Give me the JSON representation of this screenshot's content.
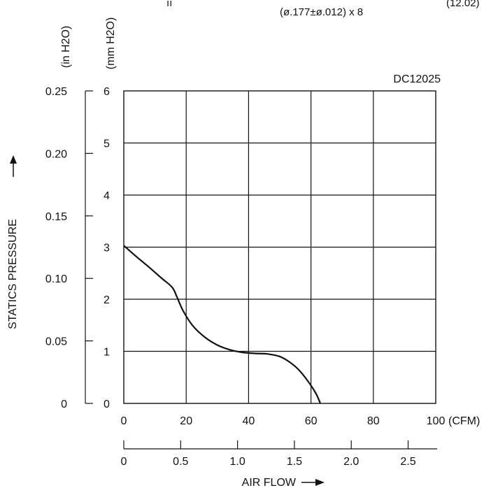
{
  "header_fragments": {
    "left_mark": "ıı",
    "hole_spec": "(ø.177±ø.012) x 8",
    "right_note": "(12.02)"
  },
  "chart_data": {
    "type": "line",
    "model": "DC12025",
    "xlabel": "AIR FLOW",
    "ylabel": "STATICS PRESSURE",
    "x_unit": "(CFM)",
    "y_units": {
      "primary": "(mm H2O)",
      "secondary": "(in H2O)"
    },
    "xlim": [
      0,
      100
    ],
    "ylim": [
      0,
      6
    ],
    "grid": true,
    "x_ticks": [
      "0",
      "20",
      "40",
      "60",
      "80",
      "100"
    ],
    "x_ticks_secondary": [
      "0",
      "0.5",
      "1.0",
      "1.5",
      "2.0",
      "2.5"
    ],
    "y_ticks": [
      "0",
      "1",
      "2",
      "3",
      "4",
      "5",
      "6"
    ],
    "y_ticks_secondary": [
      "0",
      "0.05",
      "0.10",
      "0.15",
      "0.20",
      "0.25"
    ],
    "series": [
      {
        "x": [
          0,
          4,
          8,
          12,
          15.5,
          17,
          19,
          22,
          26,
          30,
          34,
          38,
          42,
          46,
          50,
          53,
          56,
          59,
          61.5,
          63
        ],
        "y": [
          3.03,
          2.82,
          2.62,
          2.41,
          2.23,
          2.05,
          1.78,
          1.5,
          1.27,
          1.12,
          1.03,
          0.98,
          0.96,
          0.95,
          0.9,
          0.8,
          0.65,
          0.43,
          0.2,
          0.0
        ]
      }
    ]
  }
}
